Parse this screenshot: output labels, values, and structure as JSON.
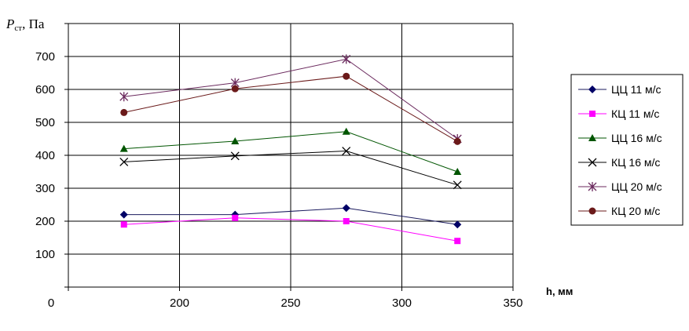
{
  "chart_data": {
    "type": "line",
    "ylabel_symbol": "P",
    "ylabel_subscript": "ст",
    "ylabel_unit": ", Па",
    "xlabel": "h, мм",
    "x_tick_labels": [
      "0",
      "200",
      "250",
      "300",
      "350"
    ],
    "y_tick_labels": [
      "100",
      "200",
      "300",
      "400",
      "500",
      "600",
      "700"
    ],
    "xlim": [
      150,
      350
    ],
    "ylim": [
      0,
      800
    ],
    "grid": true,
    "legend_position": "right",
    "x": [
      175,
      225,
      275,
      325
    ],
    "series": [
      {
        "name": "ЦЦ 11 м/с",
        "values": [
          220,
          220,
          240,
          190
        ],
        "line_color": "#1a1a5e",
        "marker_color": "#000066",
        "marker": "diamond"
      },
      {
        "name": "КЦ 11 м/с",
        "values": [
          190,
          210,
          200,
          140
        ],
        "line_color": "#ff00ff",
        "marker_color": "#ff00ff",
        "marker": "square"
      },
      {
        "name": "ЦЦ 16 м/с",
        "values": [
          420,
          443,
          472,
          350
        ],
        "line_color": "#005500",
        "marker_color": "#005500",
        "marker": "triangle"
      },
      {
        "name": "КЦ 16 м/с",
        "values": [
          380,
          398,
          413,
          310
        ],
        "line_color": "#000000",
        "marker_color": "#000000",
        "marker": "x"
      },
      {
        "name": "ЦЦ 20 м/с",
        "values": [
          578,
          620,
          692,
          450
        ],
        "line_color": "#6b2a5e",
        "marker_color": "#6b2a5e",
        "marker": "asterisk"
      },
      {
        "name": "КЦ 20 м/с",
        "values": [
          530,
          602,
          640,
          442
        ],
        "line_color": "#6b1a1a",
        "marker_color": "#6b1a1a",
        "marker": "circle"
      }
    ]
  }
}
